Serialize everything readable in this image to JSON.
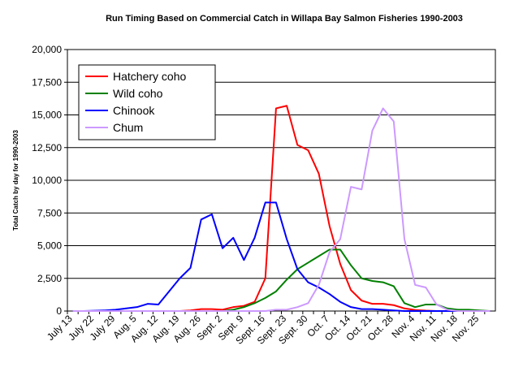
{
  "chart_data": {
    "type": "line",
    "title": "Run Timing Based on Commercial Catch in Willapa Bay Salmon Fisheries 1990-2003",
    "y_label": "Total Catch by day for 1990-2003",
    "categories": [
      "July 13",
      null,
      "July 22",
      null,
      "July 29",
      null,
      "Aug. 5",
      null,
      "Aug. 12",
      null,
      "Aug. 19",
      null,
      "Aug. 26",
      null,
      "Sept. 2",
      null,
      "Sept. 9",
      null,
      "Sept. 16",
      null,
      "Sept. 23",
      null,
      "Sept. 30",
      null,
      "Oct. 7",
      null,
      "Oct. 14",
      null,
      "Oct. 21",
      null,
      "Oct. 28",
      null,
      "Nov. 4",
      null,
      "Nov. 11",
      null,
      "Nov. 18",
      null,
      "Nov. 25",
      null
    ],
    "series": [
      {
        "name": "Hatchery coho",
        "color": "#ff0000",
        "values": [
          0,
          0,
          0,
          0,
          0,
          0,
          0,
          0,
          0,
          0,
          0,
          50,
          150,
          150,
          100,
          300,
          400,
          700,
          2500,
          15500,
          15700,
          12700,
          12300,
          10500,
          6500,
          3600,
          1600,
          800,
          550,
          550,
          450,
          200,
          80,
          30,
          0,
          0,
          0,
          0,
          0,
          0
        ]
      },
      {
        "name": "Wild coho",
        "color": "#008000",
        "values": [
          0,
          0,
          0,
          0,
          0,
          0,
          0,
          0,
          0,
          0,
          0,
          0,
          0,
          0,
          0,
          100,
          300,
          600,
          1000,
          1500,
          2400,
          3200,
          3700,
          4200,
          4700,
          4700,
          3500,
          2500,
          2300,
          2200,
          1900,
          600,
          300,
          500,
          500,
          200,
          100,
          100,
          50,
          0
        ]
      },
      {
        "name": "Chinook",
        "color": "#0000ff",
        "values": [
          0,
          0,
          20,
          50,
          100,
          200,
          300,
          550,
          500,
          1500,
          2500,
          3300,
          7000,
          7400,
          4800,
          5600,
          3900,
          5600,
          8300,
          8300,
          5500,
          3200,
          2200,
          1800,
          1300,
          700,
          300,
          150,
          150,
          100,
          50,
          0,
          0,
          0,
          0,
          0,
          0,
          0,
          0,
          0
        ]
      },
      {
        "name": "Chum",
        "color": "#cc99ff",
        "values": [
          0,
          0,
          0,
          0,
          0,
          0,
          0,
          0,
          0,
          0,
          0,
          0,
          0,
          0,
          0,
          0,
          0,
          0,
          0,
          100,
          100,
          300,
          600,
          2000,
          4500,
          5500,
          9500,
          9300,
          13800,
          15500,
          14500,
          5500,
          2000,
          1800,
          500,
          100,
          0,
          0,
          0,
          0
        ]
      }
    ],
    "ylim": [
      0,
      20000
    ],
    "yticks": [
      0,
      {
        "value": 2500,
        "label": "2,500"
      },
      {
        "value": 5000,
        "label": "5,000"
      },
      {
        "value": 7500,
        "label": "7,500"
      },
      {
        "value": 10000,
        "label": "10,000"
      },
      {
        "value": 12500,
        "label": "12,500"
      },
      {
        "value": 15000,
        "label": "15,000"
      },
      {
        "value": 17500,
        "label": "17,500"
      },
      {
        "value": 20000,
        "label": "20,000"
      }
    ],
    "grid": true,
    "legend": "upper-left"
  }
}
